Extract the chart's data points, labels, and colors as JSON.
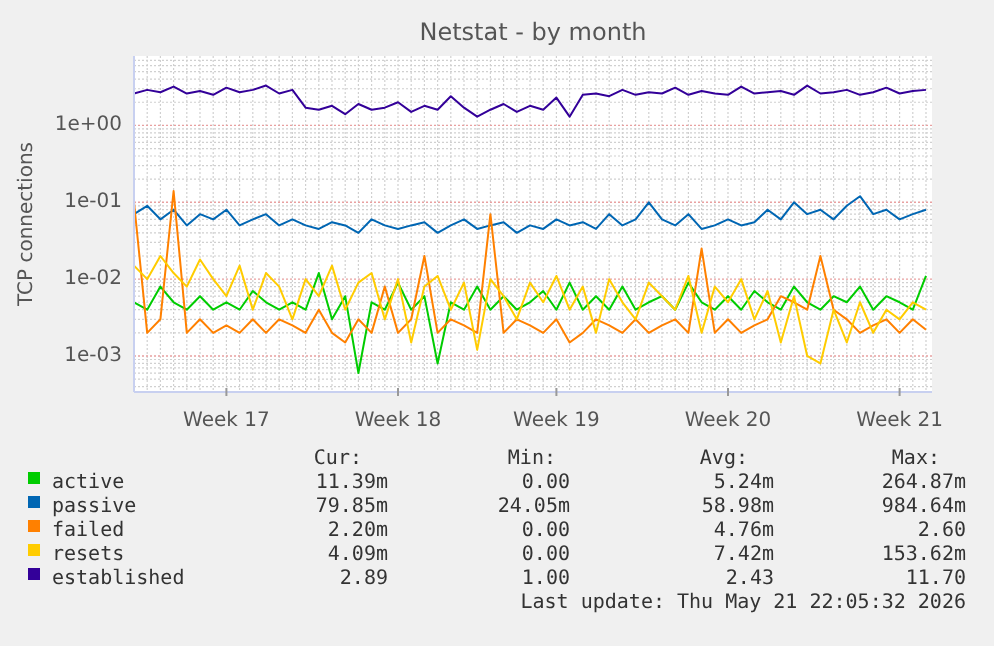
{
  "chart_data": {
    "type": "line",
    "title": "Netstat - by month",
    "ylabel": "TCP connections",
    "log": "y",
    "grid": true,
    "legend": "bottom",
    "line_style": "solid",
    "marker": "none",
    "categories": [
      null,
      null,
      null,
      null,
      null,
      null,
      null,
      "Week 17",
      null,
      null,
      null,
      null,
      null,
      null,
      null,
      null,
      null,
      null,
      null,
      null,
      "Week 18",
      null,
      null,
      null,
      null,
      null,
      null,
      null,
      null,
      null,
      null,
      null,
      "Week 19",
      null,
      null,
      null,
      null,
      null,
      null,
      null,
      null,
      null,
      null,
      null,
      null,
      "Week 20",
      null,
      null,
      null,
      null,
      null,
      null,
      null,
      null,
      null,
      null,
      null,
      null,
      "Week 21",
      null,
      null
    ],
    "ylim": [
      0.00034,
      8
    ],
    "yticks": [
      {
        "value": 0.001,
        "label": "1e-03"
      },
      {
        "value": 0.01,
        "label": "1e-02"
      },
      {
        "value": 0.1,
        "label": "1e-01"
      },
      {
        "value": 1,
        "label": "1e+00"
      }
    ],
    "series": [
      {
        "name": "active",
        "color": "#00cc00",
        "values": [
          0.005,
          0.004,
          0.008,
          0.005,
          0.004,
          0.006,
          0.004,
          0.005,
          0.004,
          0.007,
          0.005,
          0.004,
          0.005,
          0.004,
          0.012,
          0.003,
          0.006,
          0.0006,
          0.005,
          0.004,
          0.009,
          0.004,
          0.006,
          0.0008,
          0.005,
          0.004,
          0.008,
          0.004,
          0.006,
          0.004,
          0.005,
          0.007,
          0.004,
          0.009,
          0.004,
          0.006,
          0.004,
          0.008,
          0.004,
          0.005,
          0.006,
          0.004,
          0.009,
          0.005,
          0.004,
          0.006,
          0.004,
          0.007,
          0.005,
          0.004,
          0.008,
          0.005,
          0.004,
          0.006,
          0.005,
          0.008,
          0.004,
          0.006,
          0.005,
          0.004,
          0.011
        ]
      },
      {
        "name": "passive",
        "color": "#0066b3",
        "values": [
          0.07,
          0.09,
          0.06,
          0.08,
          0.05,
          0.07,
          0.06,
          0.08,
          0.05,
          0.06,
          0.07,
          0.05,
          0.06,
          0.05,
          0.045,
          0.055,
          0.05,
          0.04,
          0.06,
          0.05,
          0.045,
          0.05,
          0.055,
          0.04,
          0.05,
          0.06,
          0.045,
          0.05,
          0.055,
          0.04,
          0.05,
          0.045,
          0.06,
          0.05,
          0.055,
          0.045,
          0.07,
          0.05,
          0.06,
          0.1,
          0.06,
          0.05,
          0.07,
          0.045,
          0.05,
          0.06,
          0.05,
          0.055,
          0.08,
          0.06,
          0.1,
          0.07,
          0.08,
          0.06,
          0.09,
          0.12,
          0.07,
          0.08,
          0.06,
          0.07,
          0.08
        ]
      },
      {
        "name": "failed",
        "color": "#ff8000",
        "values": [
          0.1,
          0.002,
          0.003,
          0.14,
          0.002,
          0.003,
          0.002,
          0.0025,
          0.002,
          0.003,
          0.002,
          0.003,
          0.0025,
          0.002,
          0.004,
          0.002,
          0.0015,
          0.003,
          0.002,
          0.008,
          0.002,
          0.003,
          0.02,
          0.002,
          0.003,
          0.0025,
          0.002,
          0.07,
          0.002,
          0.003,
          0.0025,
          0.002,
          0.003,
          0.0015,
          0.002,
          0.003,
          0.0025,
          0.002,
          0.003,
          0.002,
          0.0025,
          0.003,
          0.002,
          0.025,
          0.002,
          0.003,
          0.002,
          0.0025,
          0.003,
          0.006,
          0.005,
          0.004,
          0.02,
          0.004,
          0.003,
          0.002,
          0.0025,
          0.003,
          0.002,
          0.003,
          0.0022
        ]
      },
      {
        "name": "resets",
        "color": "#ffcc00",
        "values": [
          0.015,
          0.01,
          0.02,
          0.012,
          0.008,
          0.018,
          0.01,
          0.006,
          0.015,
          0.004,
          0.012,
          0.008,
          0.003,
          0.01,
          0.006,
          0.015,
          0.004,
          0.009,
          0.012,
          0.003,
          0.01,
          0.0015,
          0.008,
          0.011,
          0.004,
          0.009,
          0.0012,
          0.01,
          0.006,
          0.003,
          0.009,
          0.005,
          0.011,
          0.004,
          0.008,
          0.002,
          0.01,
          0.005,
          0.003,
          0.009,
          0.006,
          0.004,
          0.011,
          0.002,
          0.008,
          0.005,
          0.01,
          0.003,
          0.007,
          0.0015,
          0.006,
          0.001,
          0.0008,
          0.004,
          0.0015,
          0.005,
          0.002,
          0.004,
          0.003,
          0.005,
          0.004
        ]
      },
      {
        "name": "established",
        "color": "#330099",
        "values": [
          2.6,
          2.9,
          2.7,
          3.2,
          2.6,
          2.8,
          2.5,
          3.1,
          2.7,
          2.9,
          3.3,
          2.6,
          2.9,
          1.7,
          1.6,
          1.8,
          1.4,
          1.9,
          1.6,
          1.7,
          2.0,
          1.5,
          1.8,
          1.6,
          2.4,
          1.7,
          1.3,
          1.6,
          1.9,
          1.5,
          1.8,
          1.6,
          2.3,
          1.3,
          2.5,
          2.6,
          2.4,
          2.9,
          2.5,
          2.7,
          2.6,
          3.1,
          2.5,
          2.8,
          2.6,
          2.5,
          3.2,
          2.6,
          2.7,
          2.8,
          2.5,
          3.3,
          2.6,
          2.7,
          2.9,
          2.5,
          2.7,
          3.1,
          2.6,
          2.8,
          2.9
        ]
      }
    ],
    "annotations": [
      "Cur:",
      "Min:",
      "Avg:",
      "Max:",
      "11.39m",
      "0.00",
      "5.24m",
      "264.87m",
      "79.85m",
      "24.05m",
      "58.98m",
      "984.64m",
      "2.20m",
      "0.00",
      "4.76m",
      "2.60",
      "4.09m",
      "0.00",
      "7.42m",
      "153.62m",
      "2.89",
      "1.00",
      "2.43",
      "11.70",
      "Last update: Thu May 21 22:05:32 2026"
    ]
  }
}
